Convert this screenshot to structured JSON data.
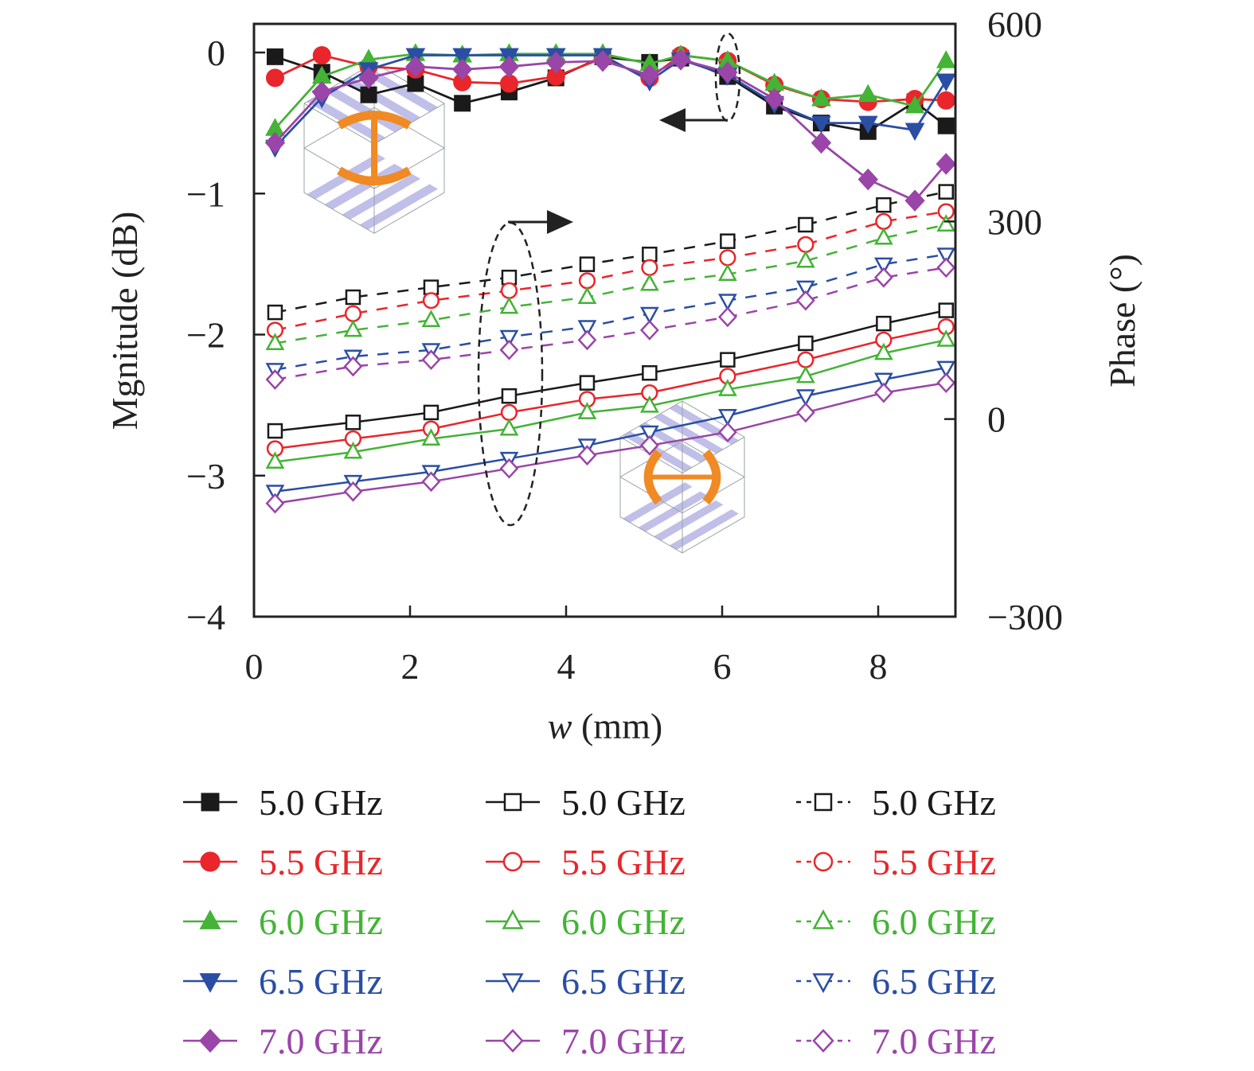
{
  "chart_data": {
    "type": "line",
    "title": "",
    "xlabel_italic": "w",
    "xlabel_rest": " (mm)",
    "ylabel_left": "Mgnitude (dB)",
    "ylabel_right": "Phase (°)",
    "xlim": [
      0,
      9
    ],
    "ylim_left": [
      -4,
      0.2
    ],
    "ylim_right": [
      -300,
      600
    ],
    "xticks": [
      0,
      2,
      4,
      6,
      8
    ],
    "xtick_labels": [
      "0",
      "2",
      "4",
      "6",
      "8"
    ],
    "yticks_left": [
      0,
      -1,
      -2,
      -3,
      -4
    ],
    "ytick_labels_left": [
      "0",
      "−1",
      "−2",
      "−3",
      "−4"
    ],
    "yticks_right": [
      600,
      300,
      0,
      -300
    ],
    "ytick_labels_right": [
      "600",
      "300",
      "0",
      "−300"
    ],
    "grid": false,
    "legend_position": "below",
    "colors": {
      "5.0": "#1a1a1a",
      "5.5": "#e8262b",
      "6.0": "#44b336",
      "6.5": "#2a4ea3",
      "7.0": "#9a45a8"
    },
    "magnitude_x": [
      0.27,
      0.87,
      1.47,
      2.07,
      2.67,
      3.27,
      3.87,
      4.47,
      5.07,
      5.47,
      6.07,
      6.67,
      7.27,
      7.87,
      8.47,
      8.87
    ],
    "magnitude_series": [
      {
        "name": "5.0 GHz",
        "freq": "5.0",
        "axis": "left",
        "marker": "square-filled",
        "style": "solid",
        "values": [
          -0.03,
          -0.14,
          -0.3,
          -0.22,
          -0.36,
          -0.28,
          -0.18,
          -0.03,
          -0.07,
          -0.04,
          -0.17,
          -0.38,
          -0.5,
          -0.56,
          -0.35,
          -0.52
        ]
      },
      {
        "name": "5.5 GHz",
        "freq": "5.5",
        "axis": "left",
        "marker": "circle-filled",
        "style": "solid",
        "values": [
          -0.18,
          -0.02,
          -0.1,
          -0.12,
          -0.21,
          -0.22,
          -0.17,
          -0.04,
          -0.18,
          -0.02,
          -0.06,
          -0.23,
          -0.33,
          -0.35,
          -0.33,
          -0.34
        ]
      },
      {
        "name": "6.0 GHz",
        "freq": "6.0",
        "axis": "left",
        "marker": "triangle-up-filled",
        "style": "solid",
        "values": [
          -0.54,
          -0.17,
          -0.05,
          -0.01,
          -0.02,
          -0.01,
          -0.01,
          -0.01,
          -0.08,
          -0.02,
          -0.06,
          -0.22,
          -0.33,
          -0.3,
          -0.38,
          -0.06
        ]
      },
      {
        "name": "6.5 GHz",
        "freq": "6.5",
        "axis": "left",
        "marker": "triangle-down-filled",
        "style": "solid",
        "values": [
          -0.67,
          -0.32,
          -0.12,
          -0.02,
          -0.02,
          -0.02,
          -0.02,
          -0.02,
          -0.2,
          -0.05,
          -0.16,
          -0.36,
          -0.5,
          -0.5,
          -0.55,
          -0.2
        ]
      },
      {
        "name": "7.0 GHz",
        "freq": "7.0",
        "axis": "left",
        "marker": "diamond-filled",
        "style": "solid",
        "values": [
          -0.64,
          -0.28,
          -0.18,
          -0.1,
          -0.12,
          -0.1,
          -0.07,
          -0.06,
          -0.16,
          -0.05,
          -0.14,
          -0.33,
          -0.64,
          -0.9,
          -1.05,
          -0.79
        ]
      }
    ],
    "phase_x": [
      0.27,
      1.27,
      2.27,
      3.27,
      4.27,
      5.07,
      6.07,
      7.07,
      8.07,
      8.87
    ],
    "phase_solid_series": [
      {
        "name": "5.0 GHz",
        "freq": "5.0",
        "axis": "right",
        "marker": "square-open",
        "style": "solid",
        "values": [
          -18,
          -5,
          10,
          35,
          55,
          70,
          90,
          115,
          145,
          165
        ]
      },
      {
        "name": "5.5 GHz",
        "freq": "5.5",
        "axis": "right",
        "marker": "circle-open",
        "style": "solid",
        "values": [
          -45,
          -30,
          -15,
          10,
          30,
          40,
          65,
          90,
          120,
          140
        ]
      },
      {
        "name": "6.0 GHz",
        "freq": "6.0",
        "axis": "right",
        "marker": "triangle-up-open",
        "style": "solid",
        "values": [
          -65,
          -50,
          -30,
          -15,
          10,
          20,
          45,
          65,
          100,
          120
        ]
      },
      {
        "name": "6.5 GHz",
        "freq": "6.5",
        "axis": "right",
        "marker": "triangle-down-open",
        "style": "solid",
        "values": [
          -110,
          -95,
          -80,
          -60,
          -40,
          -20,
          5,
          35,
          60,
          78
        ]
      },
      {
        "name": "7.0 GHz",
        "freq": "7.0",
        "axis": "right",
        "marker": "diamond-open",
        "style": "solid",
        "values": [
          -128,
          -110,
          -95,
          -75,
          -55,
          -40,
          -20,
          10,
          40,
          55
        ]
      }
    ],
    "phase_dashed_series": [
      {
        "name": "5.0 GHz",
        "freq": "5.0",
        "axis": "right",
        "marker": "square-open",
        "style": "dashed",
        "values": [
          162,
          185,
          200,
          215,
          235,
          250,
          270,
          295,
          325,
          345
        ]
      },
      {
        "name": "5.5 GHz",
        "freq": "5.5",
        "axis": "right",
        "marker": "circle-open",
        "style": "dashed",
        "values": [
          135,
          160,
          180,
          195,
          210,
          230,
          245,
          265,
          300,
          315
        ]
      },
      {
        "name": "6.0 GHz",
        "freq": "6.0",
        "axis": "right",
        "marker": "triangle-up-open",
        "style": "dashed",
        "values": [
          115,
          135,
          150,
          170,
          185,
          205,
          220,
          240,
          275,
          295
        ]
      },
      {
        "name": "6.5 GHz",
        "freq": "6.5",
        "axis": "right",
        "marker": "triangle-down-open",
        "style": "dashed",
        "values": [
          75,
          95,
          105,
          125,
          140,
          160,
          180,
          200,
          235,
          250
        ]
      },
      {
        "name": "7.0 GHz",
        "freq": "7.0",
        "axis": "right",
        "marker": "diamond-open",
        "style": "dashed",
        "values": [
          60,
          80,
          90,
          105,
          120,
          135,
          155,
          180,
          215,
          230
        ]
      }
    ],
    "annotations": [
      {
        "type": "dashed-ellipse",
        "label": "magnitude-group",
        "arrow": "left",
        "target_axis": "left"
      },
      {
        "type": "dashed-ellipse",
        "label": "phase-group",
        "arrow": "right",
        "target_axis": "right"
      },
      {
        "type": "inset",
        "label": "unit-cell-vertical-I-shape"
      },
      {
        "type": "inset",
        "label": "unit-cell-horizontal-I-shape"
      }
    ],
    "legend": {
      "columns": [
        {
          "style": "filled-solid",
          "entries": [
            {
              "label": "5.0 GHz",
              "freq": "5.0",
              "marker": "square"
            },
            {
              "label": "5.5 GHz",
              "freq": "5.5",
              "marker": "circle"
            },
            {
              "label": "6.0 GHz",
              "freq": "6.0",
              "marker": "triangle-up"
            },
            {
              "label": "6.5 GHz",
              "freq": "6.5",
              "marker": "triangle-down"
            },
            {
              "label": "7.0 GHz",
              "freq": "7.0",
              "marker": "diamond"
            }
          ]
        },
        {
          "style": "open-solid",
          "entries": [
            {
              "label": "5.0 GHz",
              "freq": "5.0",
              "marker": "square"
            },
            {
              "label": "5.5 GHz",
              "freq": "5.5",
              "marker": "circle"
            },
            {
              "label": "6.0 GHz",
              "freq": "6.0",
              "marker": "triangle-up"
            },
            {
              "label": "6.5 GHz",
              "freq": "6.5",
              "marker": "triangle-down"
            },
            {
              "label": "7.0 GHz",
              "freq": "7.0",
              "marker": "diamond"
            }
          ]
        },
        {
          "style": "open-dashed",
          "entries": [
            {
              "label": "5.0 GHz",
              "freq": "5.0",
              "marker": "square"
            },
            {
              "label": "5.5 GHz",
              "freq": "5.5",
              "marker": "circle"
            },
            {
              "label": "6.0 GHz",
              "freq": "6.0",
              "marker": "triangle-up"
            },
            {
              "label": "6.5 GHz",
              "freq": "6.5",
              "marker": "triangle-down"
            },
            {
              "label": "7.0 GHz",
              "freq": "7.0",
              "marker": "diamond"
            }
          ]
        }
      ]
    }
  }
}
